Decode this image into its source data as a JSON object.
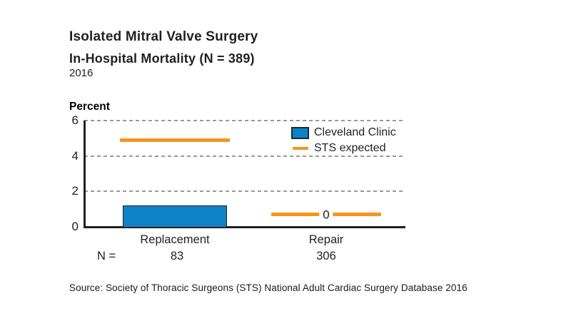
{
  "header": {
    "title": "Isolated Mitral Valve Surgery",
    "subtitle": "In-Hospital Mortality (N = 389)",
    "year": "2016"
  },
  "chart_data": {
    "type": "bar",
    "title": "Isolated Mitral Valve Surgery — In-Hospital Mortality (N = 389), 2016",
    "categories": [
      "Replacement",
      "Repair"
    ],
    "series": [
      {
        "name": "Cleveland Clinic",
        "render": "bar",
        "color": "#0e82c6",
        "values": [
          1.2,
          0
        ]
      },
      {
        "name": "STS expected",
        "render": "line",
        "color": "#f7941d",
        "values": [
          4.9,
          0.7
        ]
      }
    ],
    "zero_value_label": "0",
    "n_label": "N =",
    "n_values": [
      "83",
      "306"
    ],
    "ylabel": "Percent",
    "xlabel": "",
    "ylim": [
      0,
      6
    ],
    "yticks": [
      0,
      2,
      4,
      6
    ],
    "grid": "horizontal dashed at 2, 4, 6",
    "legend_position": "top-right"
  },
  "legend": {
    "items": [
      {
        "label": "Cleveland Clinic",
        "swatch": "bar",
        "color": "#0e82c6"
      },
      {
        "label": "STS expected",
        "swatch": "line",
        "color": "#f7941d"
      }
    ]
  },
  "footer": {
    "source": "Source: Society of Thoracic Surgeons (STS) National Adult Cardiac Surgery Database 2016"
  },
  "colors": {
    "title_brown": "#8a4526",
    "subtitle_purple": "#8d4a9f",
    "year_blue": "#2e80c2",
    "bar_blue": "#0e82c6",
    "bar_border": "#231f20",
    "sts_orange": "#f7941d",
    "grid_gray": "#999999",
    "axis_black": "#231f20"
  }
}
